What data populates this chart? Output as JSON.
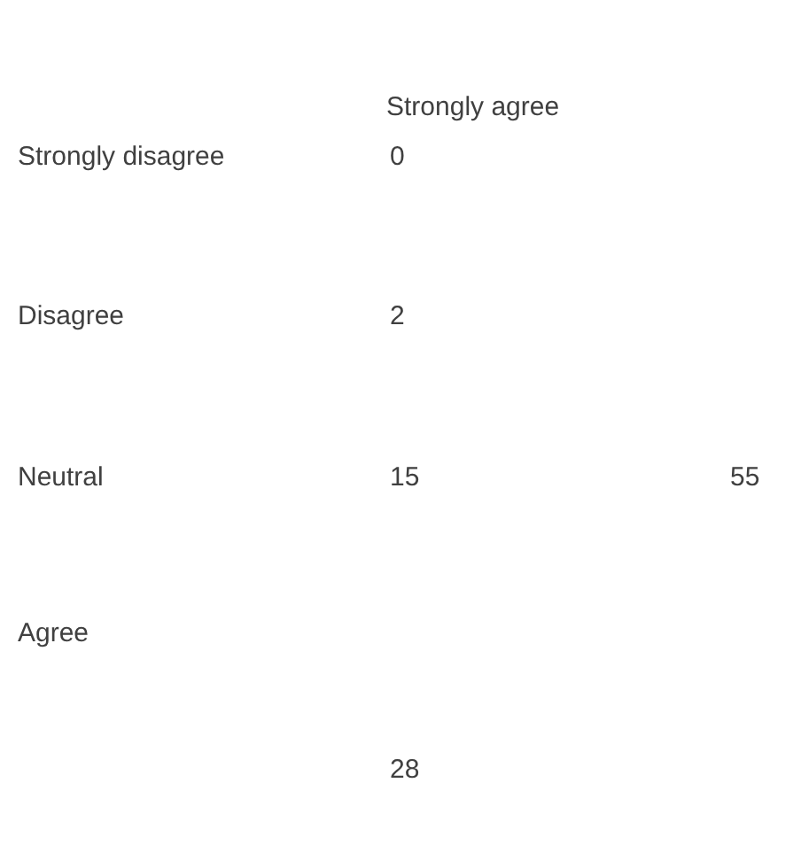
{
  "chart_data": {
    "type": "other",
    "categories": [
      "Strongly disagree",
      "Disagree",
      "Neutral",
      "Agree",
      "Strongly agree"
    ],
    "values": [
      0,
      2,
      15,
      28,
      55
    ],
    "data_labels": true
  }
}
